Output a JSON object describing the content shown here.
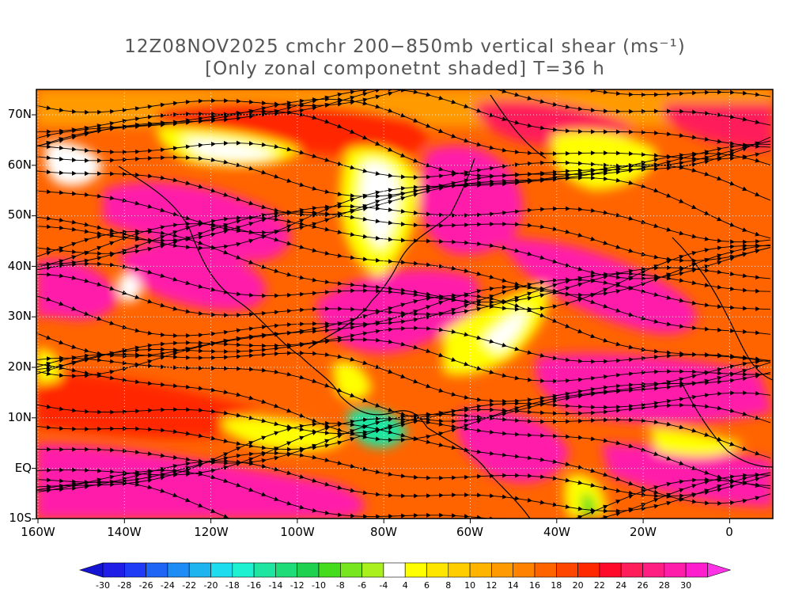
{
  "title": {
    "line1": "12Z08NOV2025 cmchr 200−850mb vertical shear (ms⁻¹)",
    "line2": "[Only zonal componetnt shaded] T=36 h"
  },
  "y_axis": [
    "70N",
    "60N",
    "50N",
    "40N",
    "30N",
    "20N",
    "10N",
    "EQ",
    "10S"
  ],
  "x_axis": [
    "160W",
    "140W",
    "120W",
    "100W",
    "80W",
    "60W",
    "40W",
    "20W",
    "0"
  ],
  "colorbar": {
    "labels": [
      "-30",
      "-28",
      "-26",
      "-24",
      "-22",
      "-20",
      "-18",
      "-16",
      "-14",
      "-12",
      "-10",
      "-8",
      "-6",
      "-4",
      "4",
      "6",
      "8",
      "10",
      "12",
      "14",
      "16",
      "18",
      "20",
      "22",
      "24",
      "26",
      "28",
      "30"
    ],
    "colors": [
      "#1e1ee6",
      "#1e3cf5",
      "#1e64f5",
      "#1e8cf5",
      "#1eb4f0",
      "#1edcf0",
      "#1ef0d2",
      "#1ee6a0",
      "#1edc78",
      "#1ed250",
      "#46dc1e",
      "#78e61e",
      "#aaf01e",
      "#ffffff",
      "#ffff00",
      "#ffe600",
      "#ffcd00",
      "#ffb400",
      "#ff9b00",
      "#ff8200",
      "#ff6400",
      "#ff4600",
      "#ff2800",
      "#ff0a28",
      "#ff1e5a",
      "#ff1e82",
      "#ff1eaa",
      "#ff1ecd"
    ],
    "left_arrow_color": "#1414d2",
    "right_arrow_color": "#ff32e6"
  },
  "map_colors": {
    "magenta": "#ff1eaa",
    "pink": "#ff1e5a",
    "red": "#ff2800",
    "orange_red": "#ff6400",
    "orange": "#ff9b00",
    "yellow_orange": "#ffcd00",
    "yellow": "#ffff00",
    "white": "#ffffff",
    "green": "#46dc1e",
    "teal": "#1ee6a0",
    "coastline": "#000000",
    "streamline": "#000000",
    "contour": "#8c3cb4"
  }
}
